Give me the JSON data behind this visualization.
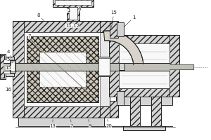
{
  "bg_color": "#ffffff",
  "line_color": "#404040",
  "dark_color": "#222222",
  "light_gray": "#e8e8e8",
  "mid_gray": "#cccccc",
  "dark_gray": "#999999",
  "hatch_gray": "#aaaaaa",
  "body_fill": "#d4d4d4",
  "white": "#f8f8f8",
  "figw": 3.0,
  "figh": 2.0,
  "dpi": 100
}
